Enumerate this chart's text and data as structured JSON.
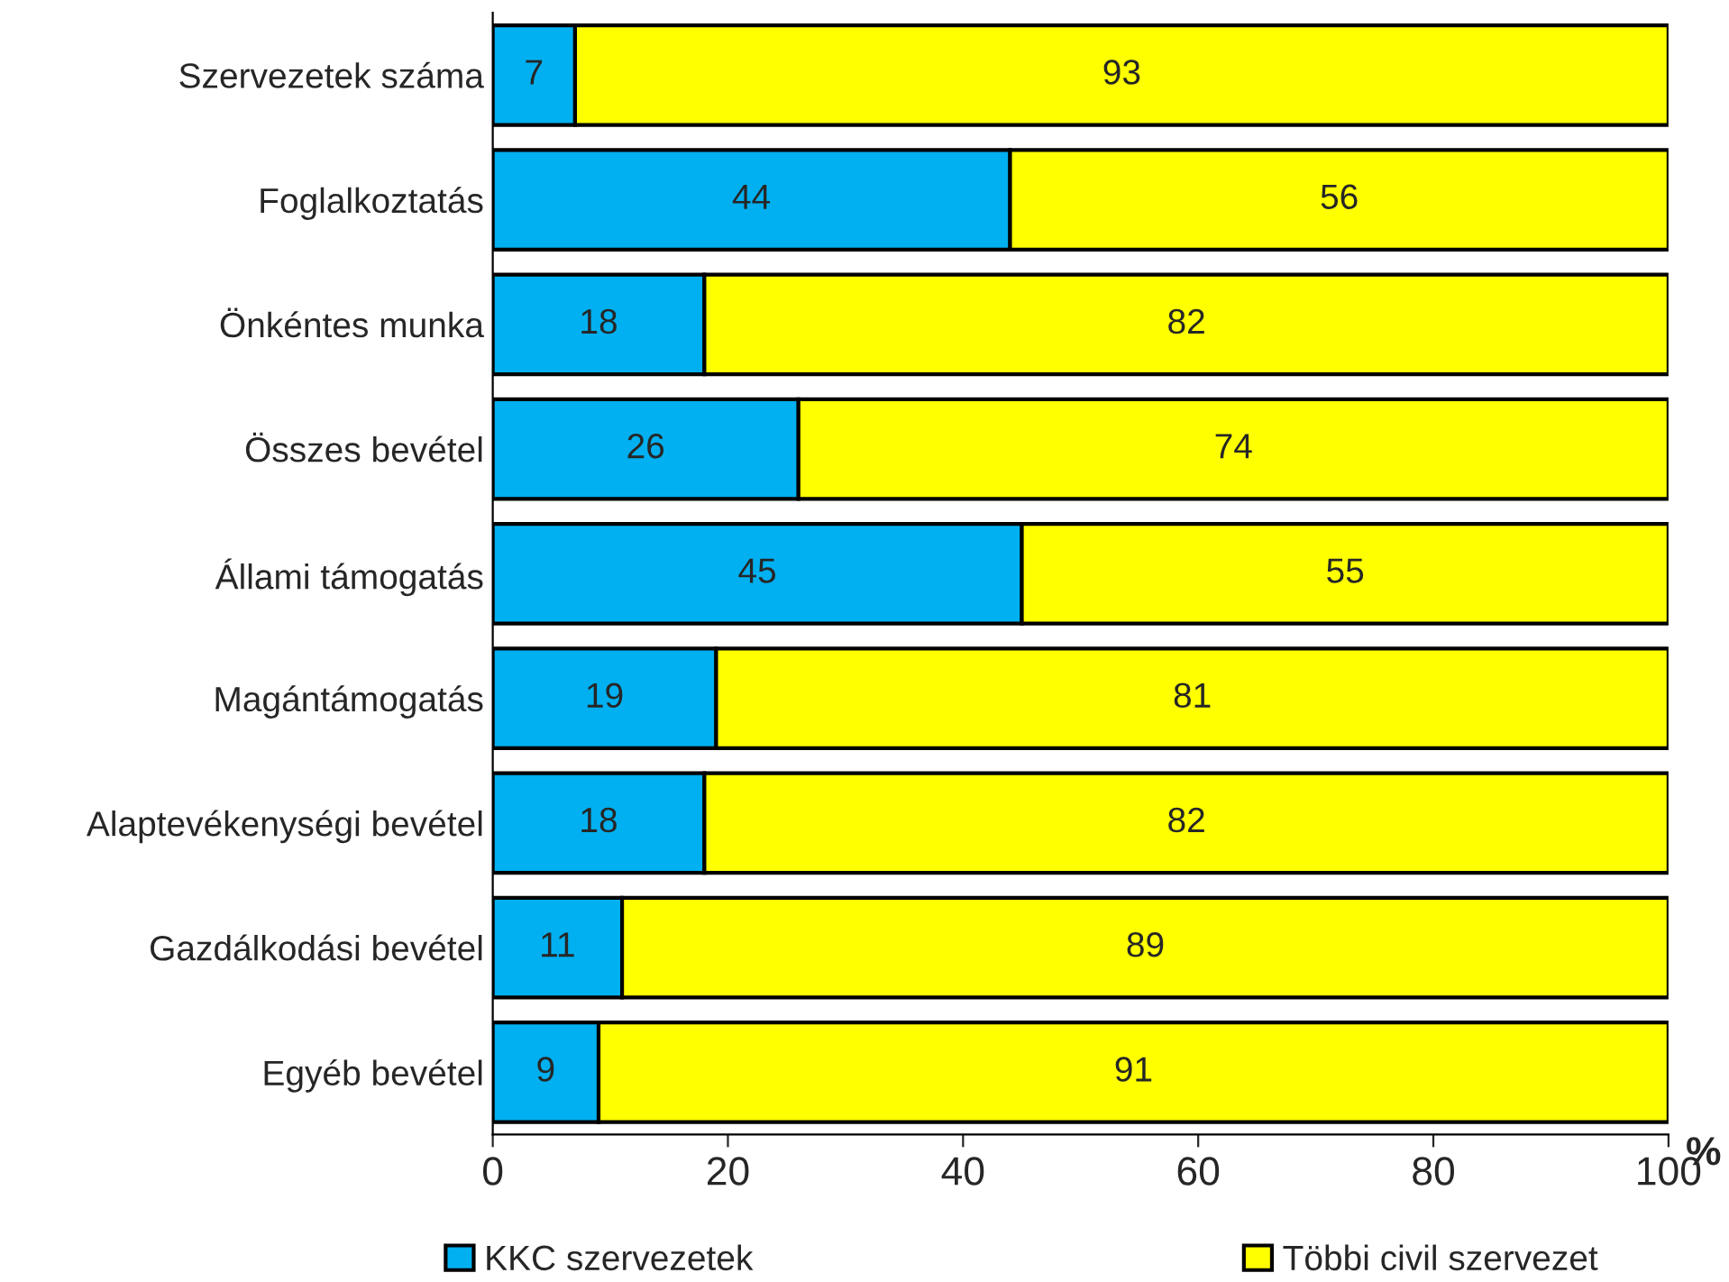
{
  "chart_data": {
    "type": "bar",
    "orientation": "horizontal",
    "stacked": true,
    "categories": [
      "Szervezetek száma",
      "Foglalkoztatás",
      "Önkéntes munka",
      "Összes bevétel",
      "Állami támogatás",
      "Magántámogatás",
      "Alaptevékenységi bevétel",
      "Gazdálkodási bevétel",
      "Egyéb bevétel"
    ],
    "series": [
      {
        "name": "KKC szervezetek",
        "color": "#00b0f0",
        "values": [
          7,
          44,
          18,
          26,
          45,
          19,
          18,
          11,
          9
        ]
      },
      {
        "name": "Többi civil szervezet",
        "color": "#ffff00",
        "values": [
          93,
          56,
          82,
          74,
          55,
          81,
          82,
          89,
          91
        ]
      }
    ],
    "xlabel": "%",
    "xlim": [
      0,
      100
    ],
    "xticks": [
      0,
      20,
      40,
      60,
      80,
      100
    ],
    "data_labels": true,
    "legend": "bottom",
    "grid": false
  }
}
